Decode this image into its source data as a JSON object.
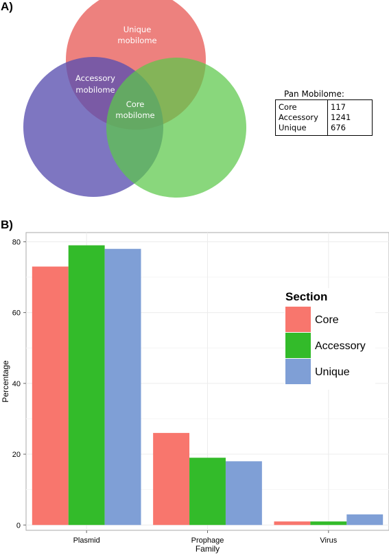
{
  "panel_a": {
    "label": "A)",
    "venn": {
      "unique_label": [
        "Unique",
        "mobilome"
      ],
      "accessory_label": [
        "Accessory",
        "mobilome"
      ],
      "core_label": [
        "Core",
        "mobilome"
      ],
      "colors": {
        "red": "#e8625e",
        "purple": "#5a4fb0",
        "green": "#5cc84a"
      }
    },
    "pan_table": {
      "title": "Pan Mobilome:",
      "rows": [
        {
          "name": "Core",
          "value": "117"
        },
        {
          "name": "Accessory",
          "value": "1241"
        },
        {
          "name": "Unique",
          "value": "676"
        }
      ]
    }
  },
  "panel_b": {
    "label": "B)"
  },
  "chart_data": {
    "type": "bar",
    "categories": [
      "Plasmid",
      "Prophage",
      "Virus"
    ],
    "series": [
      {
        "name": "Core",
        "values": [
          73,
          26,
          1
        ],
        "color": "#f8766d"
      },
      {
        "name": "Accessory",
        "values": [
          79,
          19,
          1
        ],
        "color": "#33bb2a"
      },
      {
        "name": "Unique",
        "values": [
          78,
          18,
          3
        ],
        "color": "#7f9fd6"
      }
    ],
    "xlabel": "Family",
    "ylabel": "Percentage",
    "ylim": [
      -1.5,
      82.6
    ],
    "yticks": [
      0,
      20,
      40,
      60,
      80
    ],
    "legend": {
      "title": "Section",
      "position": "right"
    },
    "grid": true
  }
}
